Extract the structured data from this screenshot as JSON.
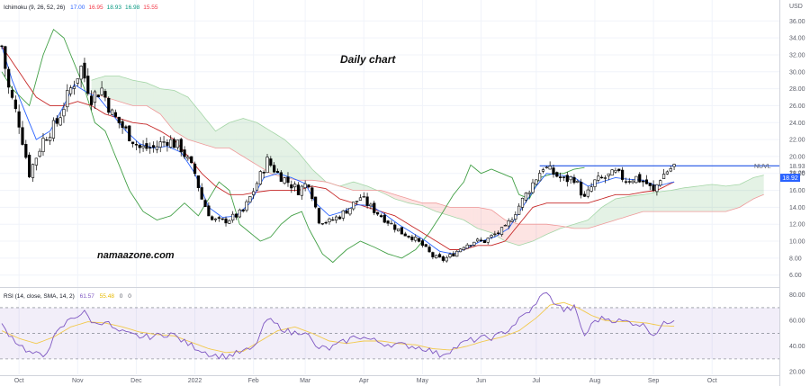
{
  "chart_data": {
    "type": "candlestick",
    "annotations": {
      "timeframe": "Daily chart",
      "watermark": "namaazone.com"
    },
    "main": {
      "indicator_label": "Ichimoku (9, 26, 52, 26)",
      "indicator_values": [
        "17.00",
        "16.95",
        "18.93",
        "16.98",
        "15.55"
      ],
      "indicator_value_colors": [
        "#2962ff",
        "#f23645",
        "#089981",
        "#089981",
        "#f23645"
      ],
      "currency": "USD",
      "y_ticks": [
        "36.00",
        "34.00",
        "32.00",
        "30.00",
        "28.00",
        "26.00",
        "24.00",
        "22.00",
        "20.00",
        "18.00",
        "16.00",
        "14.00",
        "12.00",
        "10.00",
        "8.00",
        "6.00"
      ],
      "ylim": [
        4.8,
        37.2
      ],
      "ticker_tag": "NUVL",
      "tag_upper": "18.93",
      "tag_time": "21:28",
      "tag_lower": "18.92",
      "resistance_level": 18.9,
      "resistance_start_index": 156
    },
    "rsi": {
      "label": "RSI (14, close, SMA, 14, 2)",
      "values_label": [
        "61.57",
        "55.48",
        "0",
        "0"
      ],
      "y_ticks": [
        "80.00",
        "60.00",
        "40.00",
        "20.00"
      ],
      "ylim": [
        18,
        84
      ],
      "band": [
        30,
        70
      ]
    },
    "x_ticks": [
      {
        "label": "Oct",
        "i": 5
      },
      {
        "label": "Nov",
        "i": 22
      },
      {
        "label": "Dec",
        "i": 39
      },
      {
        "label": "2022",
        "i": 56
      },
      {
        "label": "Feb",
        "i": 73
      },
      {
        "label": "Mar",
        "i": 88
      },
      {
        "label": "Apr",
        "i": 105
      },
      {
        "label": "May",
        "i": 122
      },
      {
        "label": "Jun",
        "i": 139
      },
      {
        "label": "Jul",
        "i": 155
      },
      {
        "label": "Aug",
        "i": 172
      },
      {
        "label": "Sep",
        "i": 189
      },
      {
        "label": "Oct",
        "i": 206
      }
    ],
    "x_count": 226,
    "close_anchors": [
      [
        0,
        33
      ],
      [
        2,
        28
      ],
      [
        5,
        24
      ],
      [
        8,
        18
      ],
      [
        12,
        22
      ],
      [
        16,
        24
      ],
      [
        20,
        28
      ],
      [
        23,
        30.5
      ],
      [
        26,
        27
      ],
      [
        29,
        28
      ],
      [
        32,
        25
      ],
      [
        36,
        23
      ],
      [
        40,
        21
      ],
      [
        44,
        21
      ],
      [
        48,
        22
      ],
      [
        52,
        21
      ],
      [
        56,
        18
      ],
      [
        58,
        15
      ],
      [
        61,
        12.5
      ],
      [
        64,
        12.3
      ],
      [
        67,
        12.8
      ],
      [
        70,
        13.5
      ],
      [
        73,
        16
      ],
      [
        77,
        19.5
      ],
      [
        80,
        18
      ],
      [
        83,
        17
      ],
      [
        86,
        16
      ],
      [
        89,
        17
      ],
      [
        92,
        12.5
      ],
      [
        95,
        12.3
      ],
      [
        98,
        13
      ],
      [
        101,
        14
      ],
      [
        104,
        15.2
      ],
      [
        107,
        14
      ],
      [
        110,
        13
      ],
      [
        113,
        12
      ],
      [
        116,
        11
      ],
      [
        119,
        10.5
      ],
      [
        122,
        9.5
      ],
      [
        125,
        8.2
      ],
      [
        128,
        7.8
      ],
      [
        131,
        8.5
      ],
      [
        134,
        9.5
      ],
      [
        137,
        10
      ],
      [
        140,
        10
      ],
      [
        143,
        10.8
      ],
      [
        146,
        11.5
      ],
      [
        149,
        13.5
      ],
      [
        152,
        15.5
      ],
      [
        155,
        17.5
      ],
      [
        157,
        18.8
      ],
      [
        160,
        18
      ],
      [
        163,
        17.2
      ],
      [
        166,
        17.5
      ],
      [
        169,
        15
      ],
      [
        172,
        17
      ],
      [
        175,
        17.5
      ],
      [
        178,
        18
      ],
      [
        181,
        17.3
      ],
      [
        184,
        17.5
      ],
      [
        187,
        16.8
      ],
      [
        189,
        15.8
      ],
      [
        191,
        17.5
      ],
      [
        193,
        18.3
      ],
      [
        195,
        18.9
      ]
    ],
    "tenkan_anchors": [
      [
        0,
        33
      ],
      [
        3,
        29
      ],
      [
        6,
        26
      ],
      [
        10,
        22
      ],
      [
        14,
        23
      ],
      [
        18,
        26
      ],
      [
        21,
        28.5
      ],
      [
        25,
        27.5
      ],
      [
        28,
        27
      ],
      [
        32,
        25
      ],
      [
        36,
        23
      ],
      [
        40,
        21.5
      ],
      [
        44,
        21
      ],
      [
        48,
        21.2
      ],
      [
        52,
        20.5
      ],
      [
        56,
        18
      ],
      [
        60,
        14
      ],
      [
        64,
        12.8
      ],
      [
        68,
        13
      ],
      [
        72,
        14.5
      ],
      [
        76,
        17.5
      ],
      [
        80,
        18
      ],
      [
        84,
        17.5
      ],
      [
        88,
        16.8
      ],
      [
        91,
        14.5
      ],
      [
        95,
        13
      ],
      [
        99,
        13.5
      ],
      [
        103,
        14.3
      ],
      [
        107,
        14.2
      ],
      [
        111,
        13.2
      ],
      [
        115,
        12
      ],
      [
        119,
        11
      ],
      [
        123,
        10
      ],
      [
        127,
        8.8
      ],
      [
        131,
        8.5
      ],
      [
        135,
        9.2
      ],
      [
        139,
        10
      ],
      [
        143,
        10.5
      ],
      [
        147,
        11.5
      ],
      [
        151,
        14
      ],
      [
        155,
        16.5
      ],
      [
        158,
        18
      ],
      [
        162,
        17.8
      ],
      [
        166,
        17.5
      ],
      [
        170,
        16.5
      ],
      [
        174,
        17
      ],
      [
        178,
        17.5
      ],
      [
        182,
        17.3
      ],
      [
        186,
        17.2
      ],
      [
        190,
        16.5
      ],
      [
        195,
        17
      ]
    ],
    "kijun_anchors": [
      [
        0,
        33
      ],
      [
        5,
        30
      ],
      [
        10,
        27
      ],
      [
        14,
        26
      ],
      [
        18,
        26
      ],
      [
        22,
        26.5
      ],
      [
        26,
        26
      ],
      [
        30,
        25
      ],
      [
        34,
        24.5
      ],
      [
        38,
        24
      ],
      [
        42,
        23.8
      ],
      [
        46,
        23
      ],
      [
        50,
        22
      ],
      [
        54,
        20
      ],
      [
        58,
        18
      ],
      [
        62,
        16.5
      ],
      [
        66,
        15.5
      ],
      [
        70,
        15.5
      ],
      [
        74,
        15.8
      ],
      [
        78,
        16
      ],
      [
        82,
        16
      ],
      [
        86,
        16
      ],
      [
        90,
        16.5
      ],
      [
        94,
        16.2
      ],
      [
        98,
        15
      ],
      [
        102,
        14.5
      ],
      [
        106,
        14
      ],
      [
        110,
        13.5
      ],
      [
        114,
        13
      ],
      [
        118,
        12
      ],
      [
        122,
        11
      ],
      [
        126,
        10
      ],
      [
        130,
        9
      ],
      [
        134,
        9
      ],
      [
        138,
        9.5
      ],
      [
        142,
        9.5
      ],
      [
        146,
        10
      ],
      [
        150,
        12
      ],
      [
        154,
        14
      ],
      [
        158,
        14.5
      ],
      [
        162,
        14.5
      ],
      [
        166,
        14.5
      ],
      [
        170,
        14.5
      ],
      [
        174,
        15
      ],
      [
        178,
        15.5
      ],
      [
        182,
        15.5
      ],
      [
        186,
        15.8
      ],
      [
        190,
        16
      ],
      [
        195,
        17
      ]
    ],
    "chikou_anchors": [
      [
        0,
        30
      ],
      [
        3,
        28
      ],
      [
        8,
        26
      ],
      [
        12,
        32
      ],
      [
        15,
        35
      ],
      [
        18,
        34
      ],
      [
        20,
        32
      ],
      [
        24,
        28
      ],
      [
        27,
        24
      ],
      [
        30,
        23
      ],
      [
        33,
        20
      ],
      [
        37,
        16
      ],
      [
        41,
        13.5
      ],
      [
        45,
        12.5
      ],
      [
        49,
        13
      ],
      [
        53,
        14.5
      ],
      [
        57,
        13
      ],
      [
        60,
        15
      ],
      [
        63,
        17
      ],
      [
        66,
        16
      ],
      [
        69,
        12
      ],
      [
        72,
        11
      ],
      [
        75,
        10
      ],
      [
        78,
        10.5
      ],
      [
        81,
        12
      ],
      [
        84,
        13
      ],
      [
        87,
        13.5
      ],
      [
        89,
        11.5
      ],
      [
        93,
        8.5
      ],
      [
        96,
        7.5
      ],
      [
        100,
        9
      ],
      [
        104,
        10
      ],
      [
        108,
        9.3
      ],
      [
        112,
        8.5
      ],
      [
        116,
        8
      ],
      [
        120,
        9
      ],
      [
        124,
        11
      ],
      [
        128,
        13.5
      ],
      [
        131,
        15.5
      ],
      [
        134,
        17
      ],
      [
        136,
        19
      ],
      [
        139,
        18
      ],
      [
        142,
        18.5
      ],
      [
        145,
        18
      ],
      [
        148,
        17.5
      ],
      [
        150,
        15.5
      ],
      [
        153,
        15
      ],
      [
        156,
        17.5
      ],
      [
        160,
        18
      ],
      [
        163,
        18
      ],
      [
        166,
        18.5
      ],
      [
        169,
        18.7
      ]
    ],
    "senkou_a_anchors": [
      [
        26,
        29
      ],
      [
        30,
        29.5
      ],
      [
        34,
        29.5
      ],
      [
        38,
        29
      ],
      [
        42,
        28.7
      ],
      [
        46,
        28
      ],
      [
        50,
        27.8
      ],
      [
        54,
        27
      ],
      [
        58,
        25
      ],
      [
        62,
        23
      ],
      [
        66,
        24
      ],
      [
        70,
        24.5
      ],
      [
        74,
        24
      ],
      [
        78,
        23
      ],
      [
        82,
        22
      ],
      [
        86,
        20.5
      ],
      [
        90,
        18.5
      ],
      [
        94,
        17
      ],
      [
        98,
        16.5
      ],
      [
        102,
        17
      ],
      [
        106,
        16.5
      ],
      [
        110,
        15.8
      ],
      [
        114,
        15
      ],
      [
        118,
        14.5
      ],
      [
        122,
        14.2
      ],
      [
        126,
        13.5
      ],
      [
        130,
        13
      ],
      [
        134,
        12.5
      ],
      [
        138,
        11.5
      ],
      [
        142,
        11
      ],
      [
        146,
        10
      ],
      [
        150,
        9.5
      ],
      [
        154,
        10
      ],
      [
        158,
        10.8
      ],
      [
        162,
        11.5
      ],
      [
        166,
        12
      ],
      [
        170,
        12.5
      ],
      [
        174,
        14
      ],
      [
        178,
        15
      ],
      [
        182,
        15.3
      ],
      [
        186,
        15.5
      ],
      [
        190,
        15.8
      ],
      [
        194,
        16
      ],
      [
        198,
        16.3
      ],
      [
        202,
        16.5
      ],
      [
        206,
        16.7
      ],
      [
        210,
        16.5
      ],
      [
        214,
        16.7
      ],
      [
        218,
        17.5
      ],
      [
        221,
        17.8
      ]
    ],
    "senkou_b_anchors": [
      [
        26,
        27.5
      ],
      [
        30,
        27
      ],
      [
        34,
        26.5
      ],
      [
        38,
        26
      ],
      [
        42,
        26
      ],
      [
        46,
        25
      ],
      [
        50,
        23
      ],
      [
        54,
        22
      ],
      [
        58,
        21.5
      ],
      [
        62,
        21
      ],
      [
        66,
        21
      ],
      [
        70,
        20
      ],
      [
        74,
        19
      ],
      [
        78,
        18
      ],
      [
        82,
        17.5
      ],
      [
        86,
        17.2
      ],
      [
        90,
        17.2
      ],
      [
        94,
        17
      ],
      [
        98,
        16.5
      ],
      [
        102,
        16
      ],
      [
        106,
        16
      ],
      [
        110,
        16
      ],
      [
        114,
        15.5
      ],
      [
        118,
        15
      ],
      [
        122,
        14.5
      ],
      [
        126,
        14.5
      ],
      [
        130,
        14
      ],
      [
        134,
        14
      ],
      [
        138,
        14
      ],
      [
        142,
        13.7
      ],
      [
        146,
        12.5
      ],
      [
        150,
        12
      ],
      [
        154,
        12
      ],
      [
        158,
        12
      ],
      [
        162,
        11.8
      ],
      [
        166,
        11.5
      ],
      [
        170,
        11.5
      ],
      [
        174,
        12
      ],
      [
        178,
        12.5
      ],
      [
        182,
        13
      ],
      [
        186,
        13.5
      ],
      [
        190,
        13.5
      ],
      [
        194,
        13.5
      ],
      [
        198,
        13.5
      ],
      [
        202,
        13.5
      ],
      [
        206,
        13.5
      ],
      [
        210,
        13.5
      ],
      [
        214,
        14
      ],
      [
        218,
        15
      ],
      [
        221,
        15.5
      ]
    ],
    "rsi_anchors": [
      [
        0,
        56
      ],
      [
        4,
        44
      ],
      [
        8,
        35
      ],
      [
        12,
        32
      ],
      [
        16,
        50
      ],
      [
        20,
        62
      ],
      [
        24,
        66
      ],
      [
        27,
        57
      ],
      [
        30,
        60
      ],
      [
        33,
        52
      ],
      [
        37,
        49
      ],
      [
        41,
        47
      ],
      [
        45,
        48
      ],
      [
        49,
        50
      ],
      [
        53,
        43
      ],
      [
        57,
        38
      ],
      [
        61,
        33
      ],
      [
        65,
        32
      ],
      [
        69,
        35
      ],
      [
        73,
        38
      ],
      [
        77,
        61
      ],
      [
        80,
        56
      ],
      [
        84,
        50
      ],
      [
        88,
        52
      ],
      [
        91,
        39
      ],
      [
        95,
        38
      ],
      [
        99,
        43
      ],
      [
        103,
        48
      ],
      [
        107,
        45
      ],
      [
        111,
        42
      ],
      [
        115,
        41
      ],
      [
        119,
        40
      ],
      [
        123,
        38
      ],
      [
        127,
        33
      ],
      [
        131,
        38
      ],
      [
        135,
        44
      ],
      [
        139,
        46
      ],
      [
        143,
        47
      ],
      [
        147,
        53
      ],
      [
        151,
        63
      ],
      [
        155,
        72
      ],
      [
        157,
        83
      ],
      [
        160,
        75
      ],
      [
        163,
        68
      ],
      [
        166,
        70
      ],
      [
        169,
        48
      ],
      [
        172,
        60
      ],
      [
        175,
        62
      ],
      [
        178,
        60
      ],
      [
        181,
        59
      ],
      [
        184,
        58
      ],
      [
        187,
        55
      ],
      [
        189,
        49
      ],
      [
        192,
        57
      ],
      [
        195,
        61.6
      ]
    ],
    "rsi_sma_anchors": [
      [
        0,
        52
      ],
      [
        5,
        46
      ],
      [
        10,
        42
      ],
      [
        15,
        47
      ],
      [
        20,
        55
      ],
      [
        25,
        59
      ],
      [
        30,
        58
      ],
      [
        35,
        55
      ],
      [
        40,
        51
      ],
      [
        45,
        49
      ],
      [
        50,
        48
      ],
      [
        55,
        43
      ],
      [
        60,
        38
      ],
      [
        65,
        35
      ],
      [
        70,
        36
      ],
      [
        75,
        44
      ],
      [
        80,
        52
      ],
      [
        85,
        55
      ],
      [
        90,
        50
      ],
      [
        95,
        44
      ],
      [
        100,
        42
      ],
      [
        105,
        44
      ],
      [
        110,
        44
      ],
      [
        115,
        42
      ],
      [
        120,
        41
      ],
      [
        125,
        38
      ],
      [
        130,
        37
      ],
      [
        135,
        40
      ],
      [
        140,
        44
      ],
      [
        145,
        47
      ],
      [
        150,
        52
      ],
      [
        155,
        62
      ],
      [
        159,
        72
      ],
      [
        163,
        74
      ],
      [
        167,
        70
      ],
      [
        171,
        64
      ],
      [
        175,
        60
      ],
      [
        179,
        59
      ],
      [
        183,
        59
      ],
      [
        187,
        58
      ],
      [
        191,
        56
      ],
      [
        195,
        55.5
      ]
    ]
  }
}
